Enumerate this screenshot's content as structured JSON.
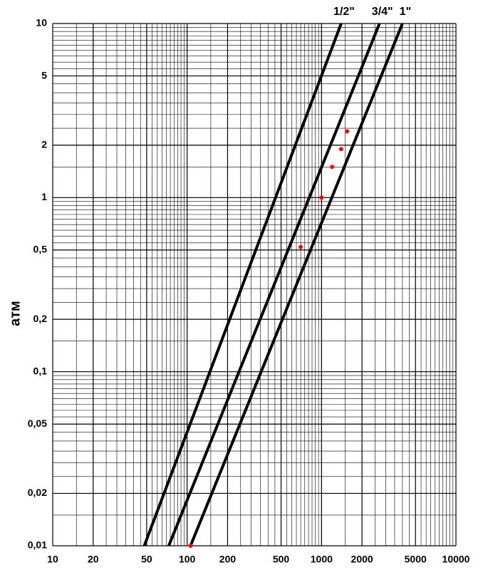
{
  "chart_data": {
    "type": "line",
    "y_label": "атм",
    "xscale": "log",
    "yscale": "log",
    "grid": true,
    "xlim": [
      10,
      10000
    ],
    "ylim": [
      0.01,
      10
    ],
    "xticks": [
      10,
      20,
      50,
      100,
      200,
      500,
      1000,
      2000,
      5000,
      10000
    ],
    "yticks": [
      {
        "value": 0.01,
        "label": "0,01"
      },
      {
        "value": 0.02,
        "label": "0,02"
      },
      {
        "value": 0.05,
        "label": "0,05"
      },
      {
        "value": 0.1,
        "label": "0,1"
      },
      {
        "value": 0.2,
        "label": "0,2"
      },
      {
        "value": 0.5,
        "label": "0,5"
      },
      1,
      2,
      5,
      10
    ],
    "series": [
      {
        "type": "line",
        "name": "1/2\"",
        "color": "#000000",
        "x": [
          48,
          1400
        ],
        "values": [
          0.01,
          10
        ]
      },
      {
        "type": "line",
        "name": "3/4\"",
        "color": "#000000",
        "x": [
          73,
          2700
        ],
        "values": [
          0.01,
          10
        ]
      },
      {
        "type": "line",
        "name": "1\"",
        "color": "#000000",
        "x": [
          106,
          4000
        ],
        "values": [
          0.01,
          10
        ]
      },
      {
        "type": "scatter",
        "color": "#ff0000",
        "x": [
          106,
          700,
          1000,
          1200,
          1400,
          1550
        ],
        "values": [
          0.01,
          0.52,
          1.0,
          1.5,
          1.9,
          2.4
        ]
      }
    ]
  }
}
